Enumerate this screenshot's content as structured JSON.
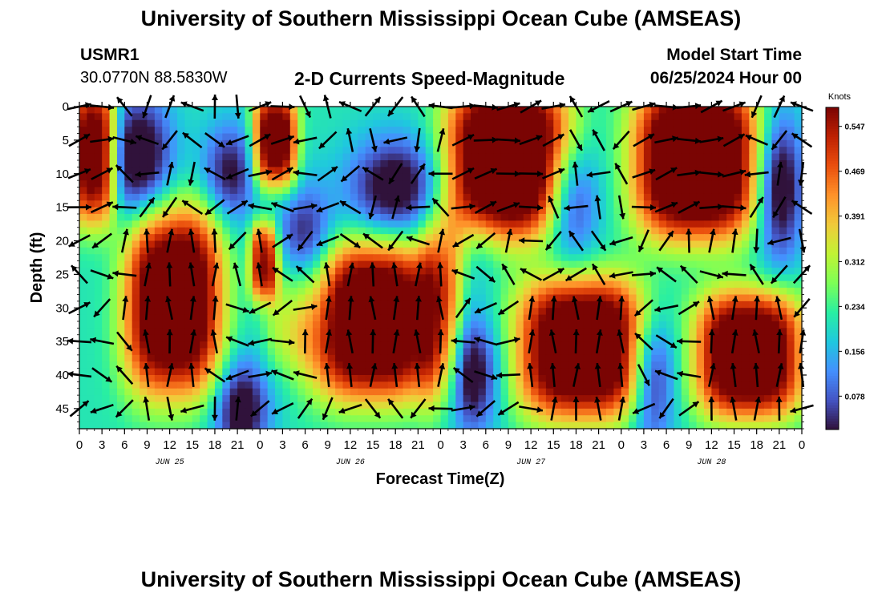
{
  "header": {
    "title": "University of Southern Mississippi Ocean Cube (AMSEAS)",
    "station": "USMR1",
    "location": "30.0770N  88.5830W",
    "subtitle": "2-D Currents Speed-Magnitude",
    "model_label": "Model Start Time",
    "model_time": "06/25/2024 Hour 00"
  },
  "footer": {
    "title": "University of Southern Mississippi Ocean Cube (AMSEAS)"
  },
  "colors": {
    "background": "#ffffff",
    "axis": "#000000",
    "arrow": "#000000"
  },
  "chart_data": {
    "type": "heatmap",
    "title": "2-D Currents Speed-Magnitude",
    "xlabel": "Forecast Time(Z)",
    "ylabel": "Depth (ft)",
    "colorbar_units": "Knots",
    "colorbar_ticks": [
      0.547,
      0.469,
      0.391,
      0.312,
      0.234,
      0.156,
      0.078
    ],
    "vmin": 0.02,
    "vmax": 0.58,
    "colormap": [
      "#30123b",
      "#4454c4",
      "#4490fe",
      "#1fc8de",
      "#29efa2",
      "#7dff56",
      "#c1f334",
      "#f1ca3a",
      "#fe922a",
      "#ea4f0d",
      "#be2102",
      "#7a0403"
    ],
    "xlim": [
      0,
      96
    ],
    "ylim": [
      0,
      48
    ],
    "x_ticks": [
      0,
      3,
      6,
      9,
      12,
      15,
      18,
      21,
      24,
      27,
      30,
      33,
      36,
      39,
      42,
      45,
      48,
      51,
      54,
      57,
      60,
      63,
      66,
      69,
      72,
      75,
      78,
      81,
      84,
      87,
      90,
      93,
      96
    ],
    "x_tick_labels": [
      "0",
      "3",
      "6",
      "9",
      "12",
      "15",
      "18",
      "21",
      "0",
      "3",
      "6",
      "9",
      "12",
      "15",
      "18",
      "21",
      "0",
      "3",
      "6",
      "9",
      "12",
      "15",
      "18",
      "21",
      "0",
      "3",
      "6",
      "9",
      "12",
      "15",
      "18",
      "21",
      "0"
    ],
    "date_labels": [
      {
        "label": "JUN 25",
        "hour": 12
      },
      {
        "label": "JUN 26",
        "hour": 36
      },
      {
        "label": "JUN 27",
        "hour": 60
      },
      {
        "label": "JUN 28",
        "hour": 84
      }
    ],
    "y_ticks": [
      0,
      5,
      10,
      15,
      20,
      25,
      30,
      35,
      40,
      45
    ],
    "y_tick_labels": [
      "0",
      "5",
      "10",
      "15",
      "20",
      "25",
      "30",
      "35",
      "40",
      "45"
    ],
    "arrow_hours": [
      0,
      3,
      6,
      9,
      12,
      15,
      18,
      21,
      24,
      27,
      30,
      33,
      36,
      39,
      42,
      45,
      48,
      51,
      54,
      57,
      60,
      63,
      66,
      69,
      72,
      75,
      78,
      81,
      84,
      87,
      90,
      93,
      96
    ],
    "arrow_depths": [
      0,
      5,
      10,
      15,
      20,
      25,
      30,
      35,
      40,
      45
    ],
    "speed_blobs": [
      {
        "hour": 2,
        "depth": 7,
        "sh": 2.5,
        "sd": 9,
        "amp": 0.45
      },
      {
        "hour": 12.5,
        "depth": 29,
        "sh": 5.5,
        "sd": 12,
        "amp": 0.5
      },
      {
        "hour": 26,
        "depth": 5,
        "sh": 2.5,
        "sd": 6,
        "amp": 0.45
      },
      {
        "hour": 24.5,
        "depth": 23,
        "sh": 1.6,
        "sd": 5,
        "amp": 0.35
      },
      {
        "hour": 39,
        "depth": 32,
        "sh": 7,
        "sd": 10,
        "amp": 0.5
      },
      {
        "hour": 57,
        "depth": 8,
        "sh": 7,
        "sd": 10,
        "amp": 0.55
      },
      {
        "hour": 67,
        "depth": 36,
        "sh": 7.5,
        "sd": 9,
        "amp": 0.5
      },
      {
        "hour": 82,
        "depth": 8,
        "sh": 7,
        "sd": 10,
        "amp": 0.55
      },
      {
        "hour": 89,
        "depth": 37,
        "sh": 6,
        "sd": 8,
        "amp": 0.5
      },
      {
        "hour": 48,
        "depth": 31,
        "sh": 2.5,
        "sd": 12,
        "amp": 0.22
      },
      {
        "hour": 28,
        "depth": 30,
        "sh": 3,
        "sd": 8,
        "amp": 0.12
      }
    ],
    "low_zones": [
      {
        "hour": 8,
        "depth": 8,
        "sh": 3.5,
        "sd": 8,
        "amp": 0.26
      },
      {
        "hour": 20,
        "depth": 10,
        "sh": 3,
        "sd": 6,
        "amp": 0.2
      },
      {
        "hour": 21.5,
        "depth": 45,
        "sh": 3,
        "sd": 6,
        "amp": 0.24
      },
      {
        "hour": 30,
        "depth": 21,
        "sh": 3,
        "sd": 7,
        "amp": 0.22
      },
      {
        "hour": 42,
        "depth": 12,
        "sh": 5,
        "sd": 6,
        "amp": 0.24
      },
      {
        "hour": 52,
        "depth": 40,
        "sh": 3,
        "sd": 7,
        "amp": 0.24
      },
      {
        "hour": 65,
        "depth": 14,
        "sh": 3,
        "sd": 7,
        "amp": 0.24
      },
      {
        "hour": 76,
        "depth": 40,
        "sh": 2.5,
        "sd": 8,
        "amp": 0.26
      },
      {
        "hour": 93,
        "depth": 12,
        "sh": 2.5,
        "sd": 9,
        "amp": 0.26
      },
      {
        "hour": 53.5,
        "depth": 20,
        "sh": 2,
        "sd": 5,
        "amp": 0.06
      }
    ]
  }
}
